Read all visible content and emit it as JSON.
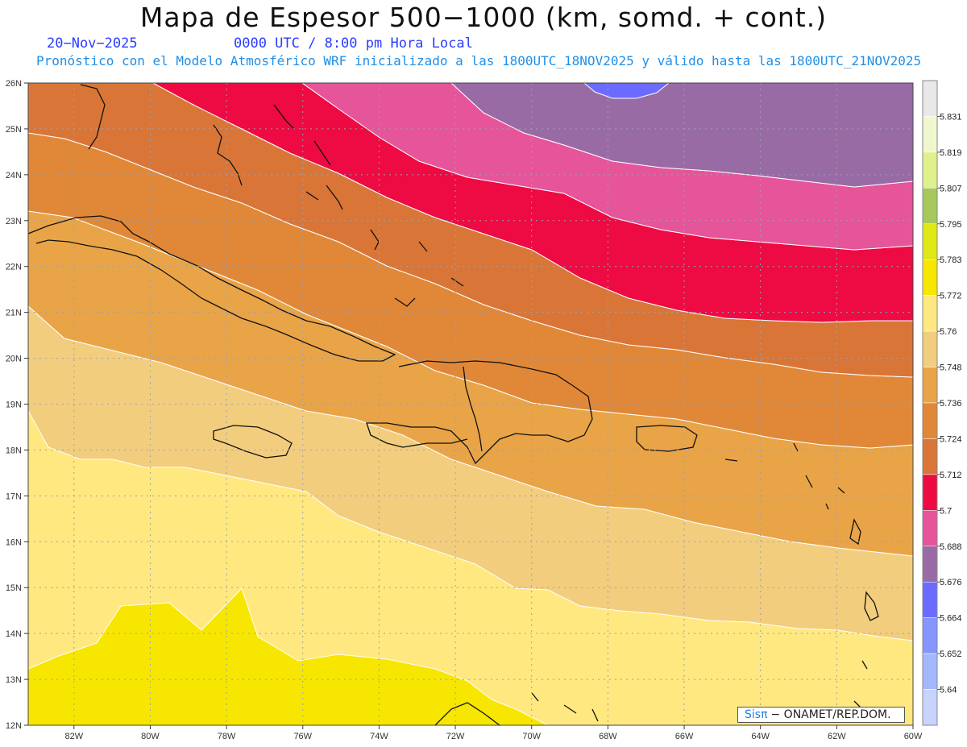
{
  "title": "Mapa de Espesor 500−1000 (km, somd. + cont.)",
  "date": "20−Nov−2025",
  "time": "0000 UTC / 8:00 pm Hora Local",
  "forecast": "Pronóstico con el Modelo Atmosférico WRF inicializado a las 1800UTC_18NOV2025 y válido hasta las  1800UTC_21NOV2025",
  "credit": {
    "brand": "Sisπ",
    "org": "− ONAMET/REP.DOM."
  },
  "lat_labels": [
    "26N",
    "25N",
    "24N",
    "23N",
    "22N",
    "21N",
    "20N",
    "19N",
    "18N",
    "17N",
    "16N",
    "15N",
    "14N",
    "13N",
    "12N"
  ],
  "lon_labels": [
    "82W",
    "80W",
    "78W",
    "76W",
    "74W",
    "72W",
    "70W",
    "68W",
    "66W",
    "64W",
    "62W",
    "60W"
  ],
  "colorbar": {
    "labels": [
      "5.831",
      "5.819",
      "5.807",
      "5.795",
      "5.783",
      "5.772",
      "5.76",
      "5.748",
      "5.736",
      "5.724",
      "5.712",
      "5.7",
      "5.688",
      "5.676",
      "5.664",
      "5.652",
      "5.64"
    ],
    "colors_top_down": [
      "#e8e8e8",
      "#eff7cf",
      "#dff18a",
      "#a6c85c",
      "#dde815",
      "#f7e600",
      "#ffe880",
      "#f2cd7d",
      "#e9a447",
      "#e08838",
      "#d97637",
      "#ee0a42",
      "#e6549a",
      "#996ba5",
      "#6b6bff",
      "#8696ff",
      "#a3b7ff",
      "#c8d3ff"
    ]
  },
  "legend_values": {
    "shown_on_map": [
      "5.64",
      "5.652",
      "5.664",
      "5.676",
      "5.688",
      "5.7",
      "5.712",
      "5.724",
      "5.736",
      "5.748",
      "5.76",
      "5.772"
    ]
  }
}
